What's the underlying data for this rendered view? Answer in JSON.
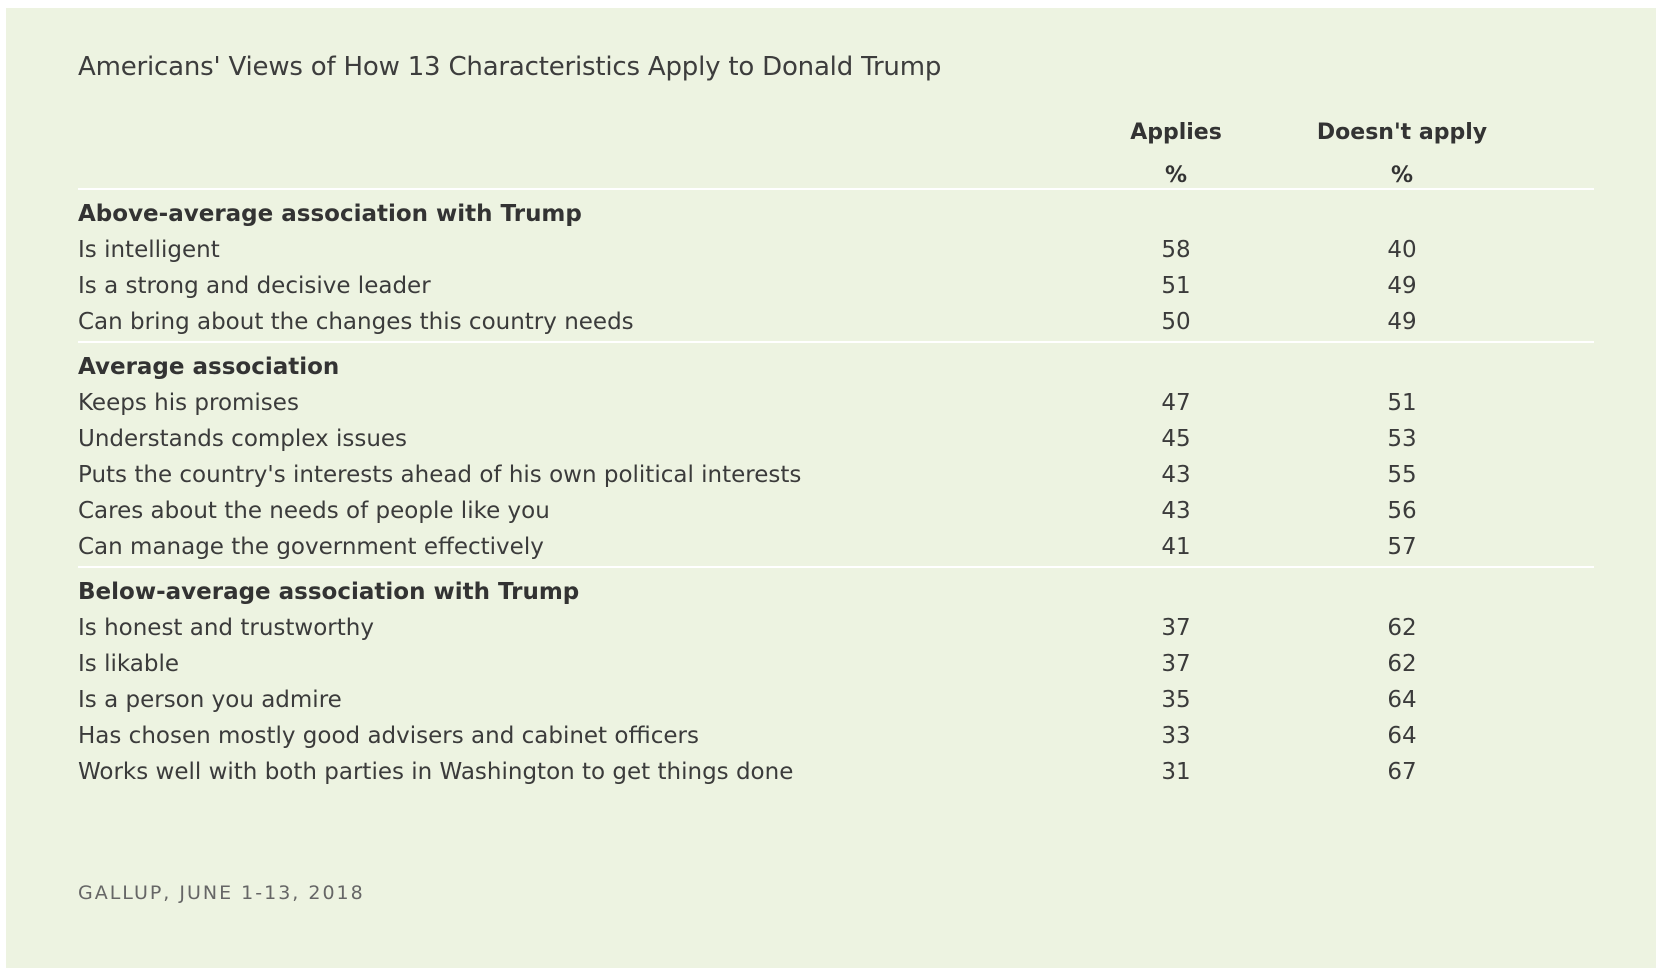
{
  "chart_data": {
    "type": "table",
    "title": "Americans' Views of How 13 Characteristics Apply to Donald Trump",
    "columns": [
      {
        "name": "Applies",
        "unit": "%"
      },
      {
        "name": "Doesn't apply",
        "unit": "%"
      }
    ],
    "sections": [
      {
        "heading": "Above-average association with Trump",
        "rows": [
          {
            "label": "Is intelligent",
            "values": [
              "58",
              "40"
            ]
          },
          {
            "label": "Is a strong and decisive leader",
            "values": [
              "51",
              "49"
            ]
          },
          {
            "label": "Can bring about the changes this country needs",
            "values": [
              "50",
              "49"
            ]
          }
        ]
      },
      {
        "heading": "Average association",
        "rows": [
          {
            "label": "Keeps his promises",
            "values": [
              "47",
              "51"
            ]
          },
          {
            "label": "Understands complex issues",
            "values": [
              "45",
              "53"
            ]
          },
          {
            "label": "Puts the country's interests ahead of his own political interests",
            "values": [
              "43",
              "55"
            ]
          },
          {
            "label": "Cares about the needs of people like you",
            "values": [
              "43",
              "56"
            ]
          },
          {
            "label": "Can manage the government effectively",
            "values": [
              "41",
              "57"
            ]
          }
        ]
      },
      {
        "heading": "Below-average association with Trump",
        "rows": [
          {
            "label": "Is honest and trustworthy",
            "values": [
              "37",
              "62"
            ]
          },
          {
            "label": "Is likable",
            "values": [
              "37",
              "62"
            ]
          },
          {
            "label": "Is a person you admire",
            "values": [
              "35",
              "64"
            ]
          },
          {
            "label": "Has chosen mostly good advisers and cabinet officers",
            "values": [
              "33",
              "64"
            ]
          },
          {
            "label": "Works well with both parties in Washington to get things done",
            "values": [
              "31",
              "67"
            ]
          }
        ]
      }
    ],
    "source": "GALLUP, JUNE 1-13, 2018"
  },
  "colors": {
    "background": "#edf3e1",
    "text": "#3b3b3b",
    "rule": "#ffffff",
    "source_text": "#666666"
  }
}
